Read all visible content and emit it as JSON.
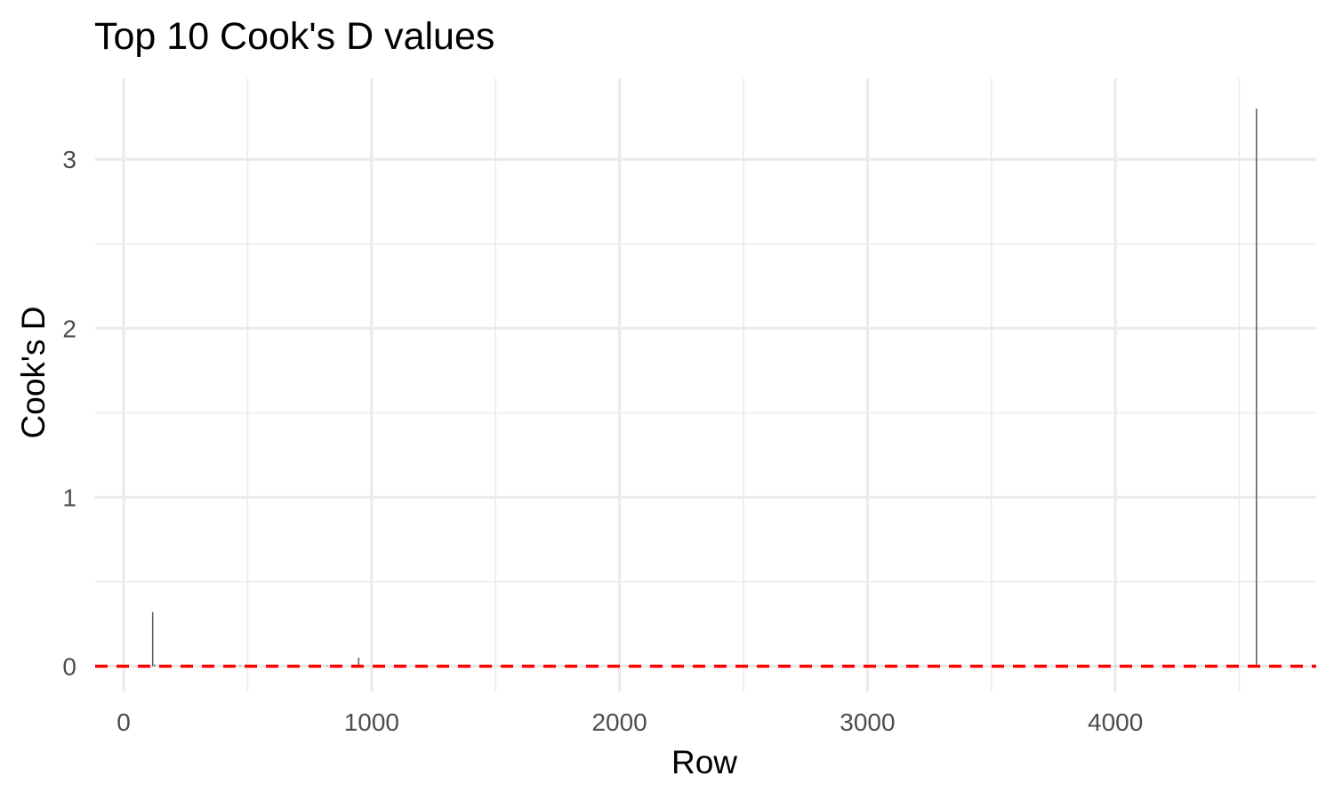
{
  "chart_data": {
    "type": "bar",
    "title": "Top 10 Cook's D values",
    "xlabel": "Row",
    "ylabel": "Cook's D",
    "xlim": [
      -115,
      4810
    ],
    "ylim": [
      -0.15,
      3.48
    ],
    "x_ticks": [
      0,
      1000,
      2000,
      3000,
      4000
    ],
    "x_tick_labels": [
      "0",
      "1000",
      "2000",
      "3000",
      "4000"
    ],
    "x_minor_ticks": [
      500,
      1500,
      2500,
      3500,
      4500
    ],
    "y_ticks": [
      0,
      1,
      2,
      3
    ],
    "y_tick_labels": [
      "0",
      "1",
      "2",
      "3"
    ],
    "y_minor_ticks": [
      0.5,
      1.5,
      2.5
    ],
    "grid": true,
    "bar_color": "#595959",
    "reference_line": {
      "y": 0,
      "color": "#ff0000",
      "style": "dashed"
    },
    "points": [
      {
        "x": 117,
        "y": 0.32
      },
      {
        "x": 125,
        "y": 0.01
      },
      {
        "x": 258,
        "y": 0.01
      },
      {
        "x": 470,
        "y": 0.005
      },
      {
        "x": 790,
        "y": 0.008
      },
      {
        "x": 820,
        "y": 0.004
      },
      {
        "x": 930,
        "y": 0.01
      },
      {
        "x": 948,
        "y": 0.05
      },
      {
        "x": 4000,
        "y": 0.003
      },
      {
        "x": 4569,
        "y": 3.3
      }
    ]
  }
}
